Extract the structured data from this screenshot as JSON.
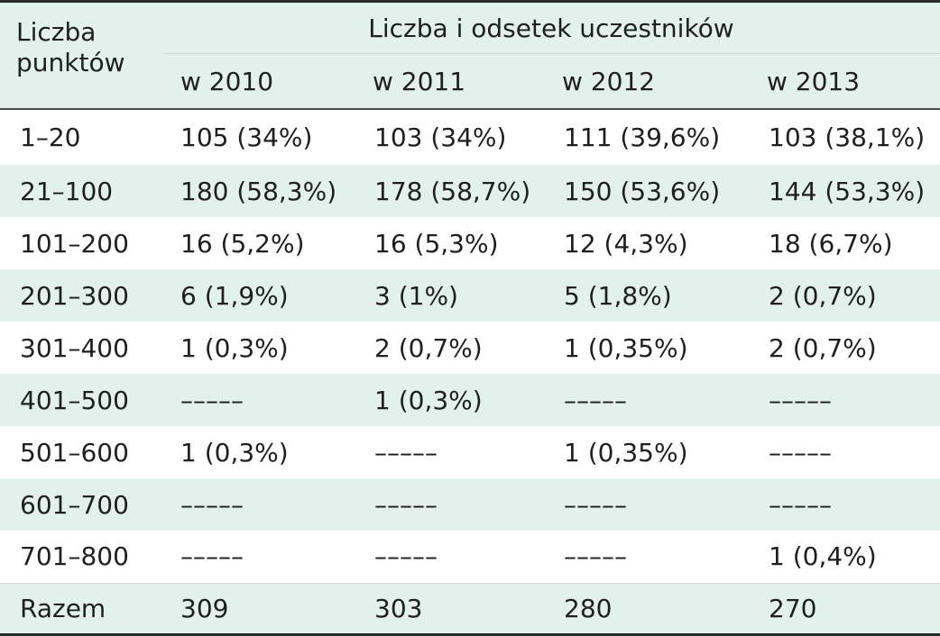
{
  "table": {
    "row_header": "Liczba\npunktów",
    "group_header": "Liczba i odsetek uczestników",
    "years": [
      "w 2010",
      "w 2011",
      "w 2012",
      "w 2013"
    ],
    "rows": [
      {
        "label": "1–20",
        "cells": [
          "105 (34%)",
          "103 (34%)",
          "111 (39,6%)",
          "103 (38,1%)"
        ]
      },
      {
        "label": "21–100",
        "cells": [
          "180 (58,3%)",
          "178 (58,7%)",
          "150 (53,6%)",
          "144 (53,3%)"
        ]
      },
      {
        "label": "101–200",
        "cells": [
          "16 (5,2%)",
          "16 (5,3%)",
          "12 (4,3%)",
          "18 (6,7%)"
        ]
      },
      {
        "label": "201–300",
        "cells": [
          "6 (1,9%)",
          "3 (1%)",
          "5 (1,8%)",
          "2 (0,7%)"
        ]
      },
      {
        "label": "301–400",
        "cells": [
          "1 (0,3%)",
          "2 (0,7%)",
          "1 (0,35%)",
          "2 (0,7%)"
        ]
      },
      {
        "label": "401–500",
        "cells": [
          "–––––",
          "1 (0,3%)",
          "–––––",
          "–––––"
        ]
      },
      {
        "label": "501–600",
        "cells": [
          "1 (0,3%)",
          "–––––",
          "1 (0,35%)",
          "–––––"
        ]
      },
      {
        "label": "601–700",
        "cells": [
          "–––––",
          "–––––",
          "–––––",
          "–––––"
        ]
      },
      {
        "label": "701–800",
        "cells": [
          "–––––",
          "–––––",
          "–––––",
          "1 (0,4%)"
        ]
      }
    ],
    "total": {
      "label": "Razem",
      "cells": [
        "309",
        "303",
        "280",
        "270"
      ]
    }
  },
  "colors": {
    "shade": "#e3f1ed",
    "rule": "#2b2b2b"
  }
}
